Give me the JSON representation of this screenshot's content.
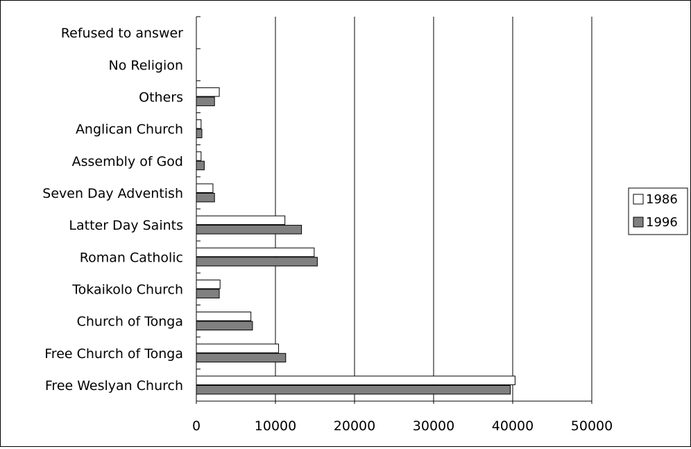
{
  "chart_data": {
    "type": "bar",
    "orientation": "horizontal",
    "categories": [
      "Free Weslyan Church",
      "Free Church of Tonga",
      "Church of Tonga",
      "Tokaikolo Church",
      "Roman Catholic",
      "Latter Day Saints",
      "Seven Day Adventish",
      "Assembly of God",
      "Anglican Church",
      "Others",
      "No Religion",
      "Refused to answer"
    ],
    "series": [
      {
        "name": "1986",
        "color": "#ffffff",
        "values": [
          40300,
          10400,
          6900,
          3000,
          14900,
          11200,
          2100,
          600,
          600,
          2900,
          0,
          0
        ]
      },
      {
        "name": "1996",
        "color": "#808080",
        "values": [
          39700,
          11300,
          7100,
          2900,
          15300,
          13300,
          2300,
          1000,
          700,
          2300,
          0,
          0
        ]
      }
    ],
    "x_ticks": [
      "0",
      "10000",
      "20000",
      "30000",
      "40000",
      "50000"
    ],
    "xlim": [
      0,
      50000
    ],
    "grid": "vertical major gridlines",
    "legend": "right"
  }
}
